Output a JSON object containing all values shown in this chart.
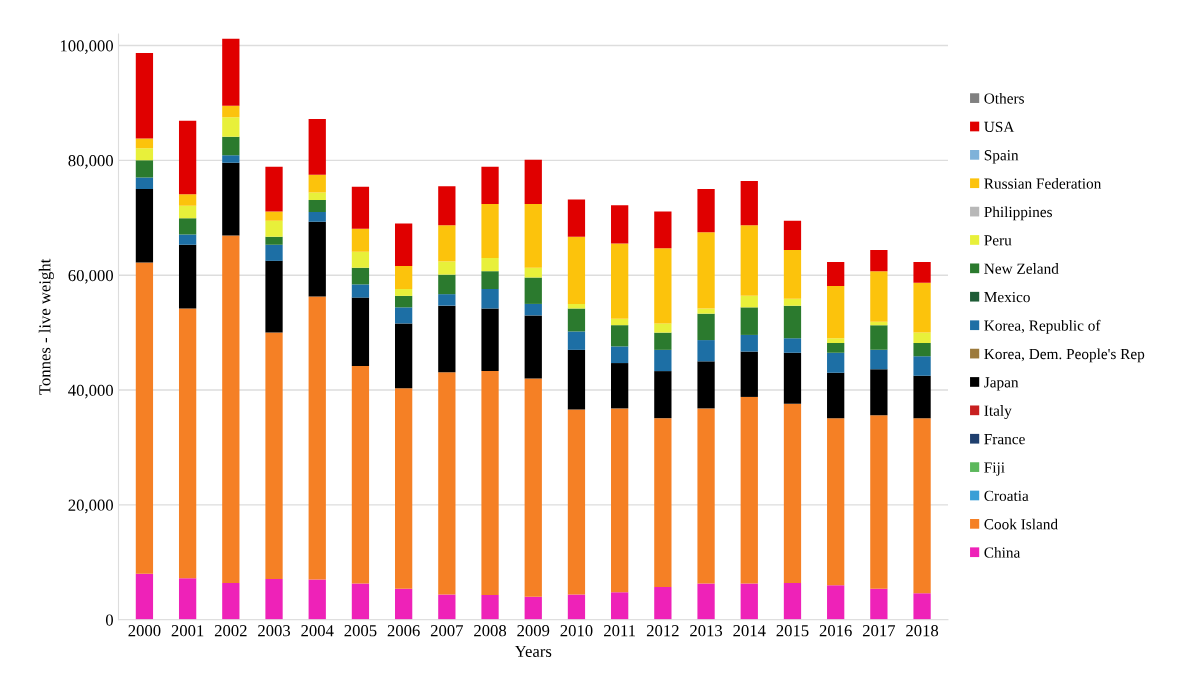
{
  "chart_data": {
    "type": "bar",
    "stacked": true,
    "xlabel": "Years",
    "ylabel": "Tonnes - live weight",
    "categories": [
      "2000",
      "2001",
      "2002",
      "2003",
      "2004",
      "2005",
      "2006",
      "2007",
      "2008",
      "2009",
      "2010",
      "2011",
      "2012",
      "2013",
      "2014",
      "2015",
      "2016",
      "2017",
      "2018"
    ],
    "ylim": [
      0,
      102000
    ],
    "yticks": [
      0,
      {
        "value": 20000,
        "label": "20,000"
      },
      {
        "value": 40000,
        "label": "40,000"
      },
      {
        "value": 60000,
        "label": "60,000"
      },
      {
        "value": 80000,
        "label": "80,000"
      },
      {
        "value": 100000,
        "label": "100,000"
      }
    ],
    "grid": "y",
    "legend": "right",
    "series": [
      {
        "name": "China",
        "color": "#ee22b8",
        "values": [
          8000,
          7200,
          6400,
          7100,
          7000,
          6300,
          5400,
          4400,
          4300,
          4000,
          4400,
          4800,
          5700,
          6300,
          6300,
          6400,
          6000,
          5400,
          4600
        ]
      },
      {
        "name": "Cook Island",
        "color": "#f58025",
        "values": [
          54200,
          47000,
          60500,
          42900,
          49300,
          37900,
          34900,
          38700,
          39000,
          38000,
          32200,
          32000,
          29400,
          30500,
          32500,
          31200,
          29100,
          30200,
          30500
        ]
      },
      {
        "name": "Croatia",
        "color": "#3a9fd6",
        "values": [
          0,
          0,
          0,
          0,
          0,
          0,
          0,
          0,
          0,
          0,
          0,
          0,
          0,
          0,
          0,
          0,
          0,
          0,
          0
        ]
      },
      {
        "name": "Fiji",
        "color": "#5cb85c",
        "values": [
          0,
          0,
          0,
          0,
          0,
          0,
          0,
          0,
          0,
          0,
          0,
          0,
          0,
          0,
          0,
          0,
          0,
          0,
          0
        ]
      },
      {
        "name": "France",
        "color": "#1f3f6e",
        "values": [
          0,
          0,
          0,
          0,
          0,
          0,
          0,
          0,
          0,
          0,
          0,
          0,
          0,
          0,
          0,
          0,
          0,
          0,
          0
        ]
      },
      {
        "name": "Italy",
        "color": "#c82020",
        "values": [
          0,
          0,
          0,
          0,
          0,
          0,
          0,
          0,
          0,
          0,
          0,
          0,
          0,
          0,
          0,
          0,
          0,
          0,
          0
        ]
      },
      {
        "name": "Japan",
        "color": "#000000",
        "values": [
          12800,
          11100,
          12700,
          12500,
          13000,
          11900,
          11300,
          11600,
          10900,
          11000,
          10400,
          7900,
          8200,
          8200,
          7900,
          8900,
          7900,
          8000,
          7400
        ]
      },
      {
        "name": "Korea, Dem. People's Rep",
        "color": "#9c7a3c",
        "values": [
          0,
          0,
          0,
          0,
          0,
          0,
          0,
          0,
          0,
          0,
          0,
          0,
          0,
          0,
          0,
          0,
          0,
          0,
          0
        ]
      },
      {
        "name": "Korea, Republic of",
        "color": "#1d6fa5",
        "values": [
          2000,
          1800,
          1300,
          2800,
          1700,
          2300,
          2800,
          2000,
          3400,
          2000,
          3200,
          2900,
          3700,
          3700,
          2900,
          2500,
          3500,
          3400,
          3400
        ]
      },
      {
        "name": "Mexico",
        "color": "#1e5c36",
        "values": [
          0,
          0,
          0,
          0,
          0,
          0,
          0,
          0,
          0,
          0,
          0,
          0,
          0,
          0,
          0,
          0,
          0,
          0,
          0
        ]
      },
      {
        "name": "New Zeland",
        "color": "#2b7a2e",
        "values": [
          3000,
          2800,
          3200,
          1400,
          2100,
          2900,
          2000,
          3400,
          3100,
          4600,
          4000,
          3700,
          3000,
          4600,
          4800,
          5700,
          1700,
          4300,
          2300
        ]
      },
      {
        "name": "Peru",
        "color": "#e8f03a",
        "values": [
          2100,
          2200,
          3400,
          2800,
          1300,
          2800,
          1200,
          2300,
          2300,
          1700,
          800,
          1100,
          1600,
          900,
          2000,
          1200,
          800,
          600,
          1800
        ]
      },
      {
        "name": "Philippines",
        "color": "#b8b8b8",
        "values": [
          0,
          0,
          0,
          0,
          0,
          0,
          0,
          0,
          0,
          0,
          0,
          0,
          0,
          0,
          0,
          0,
          0,
          0,
          0
        ]
      },
      {
        "name": "Russian Federation",
        "color": "#fcc30c",
        "values": [
          1700,
          2000,
          2000,
          1600,
          3100,
          4000,
          4000,
          6300,
          9400,
          11100,
          11700,
          13100,
          13100,
          13300,
          12300,
          8500,
          9100,
          8800,
          8700
        ]
      },
      {
        "name": "Spain",
        "color": "#7fb2d9",
        "values": [
          0,
          0,
          0,
          0,
          0,
          0,
          0,
          0,
          0,
          0,
          0,
          0,
          0,
          0,
          0,
          0,
          0,
          0,
          0
        ]
      },
      {
        "name": "USA",
        "color": "#e00000",
        "values": [
          14900,
          12800,
          11700,
          7800,
          9700,
          7300,
          7400,
          6800,
          6500,
          7700,
          6500,
          6700,
          6400,
          7500,
          7700,
          5100,
          4200,
          3700,
          3600
        ]
      },
      {
        "name": "Others",
        "color": "#808080",
        "values": [
          0,
          0,
          0,
          0,
          0,
          0,
          0,
          0,
          0,
          0,
          0,
          0,
          0,
          0,
          0,
          0,
          0,
          0,
          0
        ]
      }
    ]
  }
}
